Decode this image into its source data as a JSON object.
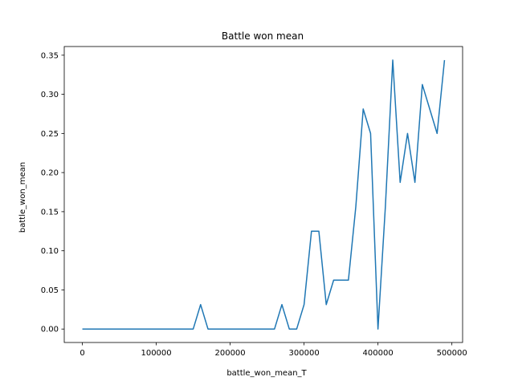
{
  "chart_data": {
    "type": "line",
    "title": "Battle won mean",
    "xlabel": "battle_won_mean_T",
    "ylabel": "battle_won_mean",
    "xlim": [
      -24500,
      514500
    ],
    "ylim": [
      -0.0172,
      0.3611
    ],
    "xticks": [
      0,
      100000,
      200000,
      300000,
      400000,
      500000
    ],
    "yticks": [
      0.0,
      0.05,
      0.1,
      0.15,
      0.2,
      0.25,
      0.3,
      0.35
    ],
    "xtick_labels": [
      "0",
      "100000",
      "200000",
      "300000",
      "400000",
      "500000"
    ],
    "ytick_labels": [
      "0.00",
      "0.05",
      "0.10",
      "0.15",
      "0.20",
      "0.25",
      "0.30",
      "0.35"
    ],
    "grid": false,
    "line_color": "#1f77b4",
    "series": [
      {
        "x": [
          0,
          10000,
          20000,
          30000,
          40000,
          50000,
          60000,
          70000,
          80000,
          90000,
          100000,
          110000,
          120000,
          130000,
          140000,
          150000,
          160000,
          170000,
          180000,
          190000,
          200000,
          210000,
          220000,
          230000,
          240000,
          250000,
          260000,
          270000,
          280000,
          290000,
          300000,
          310000,
          320000,
          330000,
          340000,
          350000,
          360000,
          370000,
          380000,
          390000,
          400000,
          410000,
          420000,
          430000,
          440000,
          450000,
          460000,
          470000,
          480000,
          490000
        ],
        "values": [
          0,
          0,
          0,
          0,
          0,
          0,
          0,
          0,
          0,
          0,
          0,
          0,
          0,
          0,
          0,
          0,
          0.03125,
          0,
          0,
          0,
          0,
          0,
          0,
          0,
          0,
          0,
          0,
          0.03125,
          0,
          0,
          0.03125,
          0.125,
          0.125,
          0.03125,
          0.0625,
          0.0625,
          0.0625,
          0.15625,
          0.28125,
          0.25,
          0,
          0.15625,
          0.34375,
          0.1875,
          0.25,
          0.1875,
          0.3125,
          0.28125,
          0.25,
          0.34375
        ]
      }
    ]
  }
}
